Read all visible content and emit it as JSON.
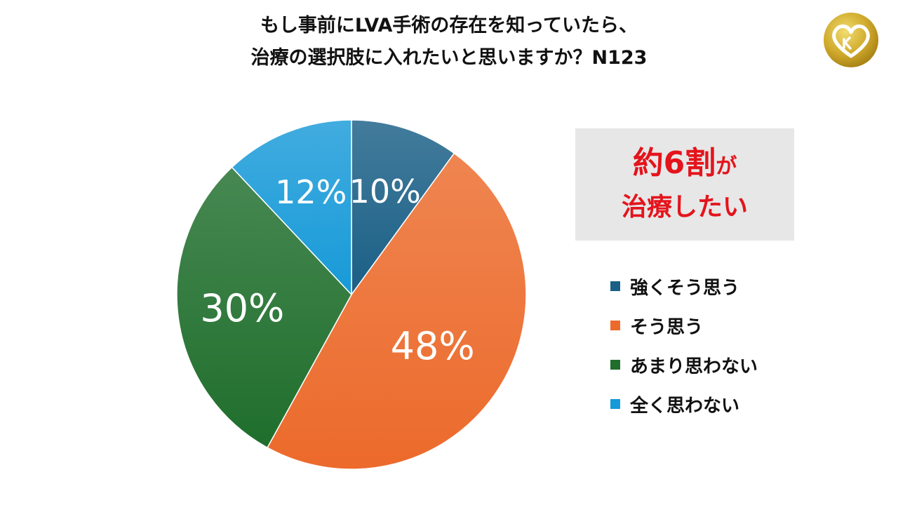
{
  "chart_data": {
    "type": "pie",
    "title_lines": [
      "もし事前にLVA手術の存在を知っていたら、",
      "治療の選択肢に入れたいと思いますか？N123"
    ],
    "slices": [
      {
        "label": "強くそう思う",
        "value": 10,
        "value_label": "10%",
        "color": "#1a5f86"
      },
      {
        "label": "そう思う",
        "value": 48,
        "value_label": "48%",
        "color": "#ec6a2b"
      },
      {
        "label": "あまり思わない",
        "value": 30,
        "value_label": "30%",
        "color": "#1f6e2c"
      },
      {
        "label": "全く思わない",
        "value": 12,
        "value_label": "12%",
        "color": "#179ad8"
      }
    ],
    "legend_position": "right"
  },
  "callout": {
    "main": "約6割",
    "suffix": "が",
    "sub": "治療したい"
  },
  "logo": {
    "icon": "heart-logo-icon",
    "color": "#c9a227"
  }
}
